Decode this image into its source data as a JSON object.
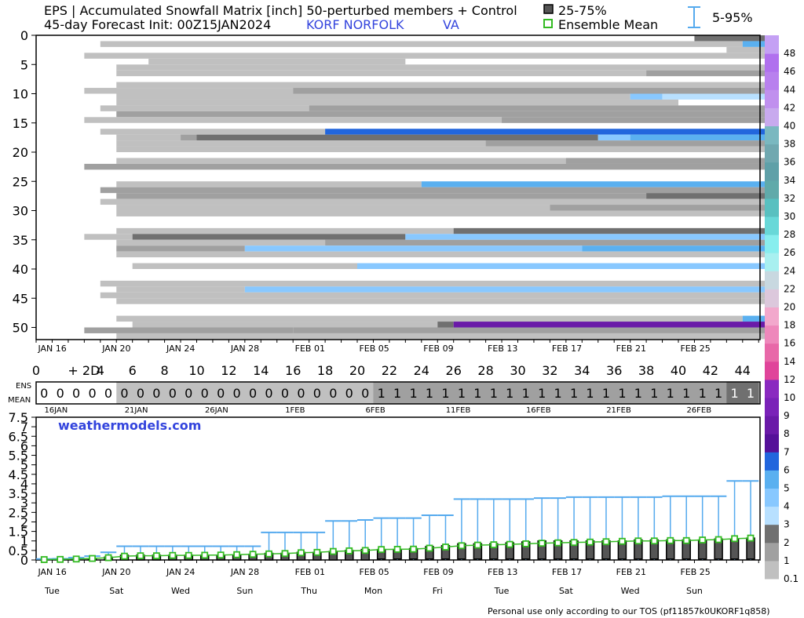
{
  "header": {
    "title_line1": "EPS | Accumulated Snowfall Matrix [inch]  50-perturbed members + Control",
    "title_line2": "45-day Forecast Init: 00Z15JAN2024",
    "station": "KORF  NORFOLK",
    "state": "VA",
    "legend_box": "25-75%",
    "legend_mean": "Ensemble Mean",
    "legend_range": "5-95%"
  },
  "colors": {
    "station_blue": "#3344dd",
    "whisker_blue": "#55aaee",
    "mean_green": "#33bb22"
  },
  "footer": {
    "tos": "Personal use only according to our TOS (pf11857k0UKORF1q858)",
    "watermark": "weathermodels.com"
  },
  "chart_data": [
    {
      "type": "heatmap",
      "title": "Accumulated Snowfall Matrix [inch]",
      "ylabel": "member",
      "y_ticks": [
        "0",
        "5",
        "10",
        "15",
        "20",
        "25",
        "30",
        "35",
        "40",
        "45",
        "50"
      ],
      "x_ticks": [
        "JAN 16",
        "JAN 20",
        "JAN 24",
        "JAN 28",
        "FEB 01",
        "FEB 05",
        "FEB 09",
        "FEB 13",
        "FEB 17",
        "FEB 21",
        "FEB 25"
      ],
      "x_unit": "forecast day",
      "member_rows": [
        {
          "m": 0,
          "segs": [
            [
              41,
              46,
              "2"
            ]
          ]
        },
        {
          "m": 1,
          "segs": [
            [
              4,
              44,
              "0.1"
            ],
            [
              44,
              46,
              "5"
            ]
          ]
        },
        {
          "m": 2,
          "segs": [
            [
              43,
              46,
              "0.1"
            ]
          ]
        },
        {
          "m": 3,
          "segs": [
            [
              3,
              46,
              "0.1"
            ]
          ]
        },
        {
          "m": 4,
          "segs": [
            [
              7,
              23,
              "0.1"
            ]
          ]
        },
        {
          "m": 5,
          "segs": [
            [
              5,
              46,
              "0.1"
            ]
          ]
        },
        {
          "m": 6,
          "segs": [
            [
              5,
              38,
              "0.1"
            ],
            [
              38,
              46,
              "1"
            ]
          ]
        },
        {
          "m": 8,
          "segs": [
            [
              5,
              46,
              "0.1"
            ]
          ]
        },
        {
          "m": 9,
          "segs": [
            [
              3,
              16,
              "0.1"
            ],
            [
              16,
              46,
              "1"
            ]
          ]
        },
        {
          "m": 10,
          "segs": [
            [
              5,
              37,
              "0.1"
            ],
            [
              37,
              39,
              "4"
            ],
            [
              39,
              46,
              "3"
            ]
          ]
        },
        {
          "m": 11,
          "segs": [
            [
              5,
              40,
              "0.1"
            ]
          ]
        },
        {
          "m": 12,
          "segs": [
            [
              4,
              17,
              "0.1"
            ],
            [
              17,
              46,
              "1"
            ]
          ]
        },
        {
          "m": 13,
          "segs": [
            [
              5,
              46,
              "1"
            ]
          ]
        },
        {
          "m": 14,
          "segs": [
            [
              3,
              46,
              "0.1"
            ],
            [
              29,
              46,
              "1"
            ]
          ]
        },
        {
          "m": 16,
          "segs": [
            [
              4,
              18,
              "0.1"
            ],
            [
              18,
              46,
              "6"
            ]
          ]
        },
        {
          "m": 17,
          "segs": [
            [
              5,
              9,
              "0.1"
            ],
            [
              9,
              10,
              "1"
            ],
            [
              10,
              35,
              "2"
            ],
            [
              35,
              37,
              "4"
            ],
            [
              37,
              46,
              "5"
            ]
          ]
        },
        {
          "m": 18,
          "segs": [
            [
              5,
              28,
              "0.1"
            ],
            [
              28,
              46,
              "1"
            ]
          ]
        },
        {
          "m": 19,
          "segs": [
            [
              5,
              46,
              "0.1"
            ]
          ]
        },
        {
          "m": 21,
          "segs": [
            [
              5,
              46,
              "0.1"
            ],
            [
              33,
              46,
              "1"
            ]
          ]
        },
        {
          "m": 22,
          "segs": [
            [
              3,
              46,
              "1"
            ]
          ]
        },
        {
          "m": 25,
          "segs": [
            [
              5,
              24,
              "0.1"
            ],
            [
              24,
              46,
              "5"
            ]
          ]
        },
        {
          "m": 26,
          "segs": [
            [
              4,
              46,
              "1"
            ]
          ]
        },
        {
          "m": 27,
          "segs": [
            [
              5,
              38,
              "1"
            ],
            [
              38,
              46,
              "2"
            ]
          ]
        },
        {
          "m": 28,
          "segs": [
            [
              4,
              46,
              "0.1"
            ]
          ]
        },
        {
          "m": 29,
          "segs": [
            [
              5,
              32,
              "0.1"
            ],
            [
              32,
              46,
              "1"
            ]
          ]
        },
        {
          "m": 30,
          "segs": [
            [
              5,
              46,
              "0.1"
            ]
          ]
        },
        {
          "m": 33,
          "segs": [
            [
              5,
              26,
              "0.1"
            ],
            [
              26,
              46,
              "2"
            ]
          ]
        },
        {
          "m": 34,
          "segs": [
            [
              3,
              6,
              "0.1"
            ],
            [
              6,
              23,
              "2"
            ],
            [
              23,
              46,
              "4"
            ]
          ]
        },
        {
          "m": 35,
          "segs": [
            [
              5,
              18,
              "0.1"
            ],
            [
              18,
              46,
              "1"
            ]
          ]
        },
        {
          "m": 36,
          "segs": [
            [
              5,
              13,
              "1"
            ],
            [
              13,
              34,
              "4"
            ],
            [
              34,
              46,
              "5"
            ]
          ]
        },
        {
          "m": 37,
          "segs": [
            [
              5,
              46,
              "0.1"
            ]
          ]
        },
        {
          "m": 39,
          "segs": [
            [
              6,
              20,
              "0.1"
            ],
            [
              20,
              46,
              "4"
            ]
          ]
        },
        {
          "m": 42,
          "segs": [
            [
              4,
              46,
              "0.1"
            ]
          ]
        },
        {
          "m": 43,
          "segs": [
            [
              5,
              13,
              "0.1"
            ],
            [
              13,
              46,
              "4"
            ]
          ]
        },
        {
          "m": 44,
          "segs": [
            [
              4,
              46,
              "0.1"
            ]
          ]
        },
        {
          "m": 45,
          "segs": [
            [
              5,
              46,
              "0.1"
            ]
          ]
        },
        {
          "m": 48,
          "segs": [
            [
              5,
              44,
              "0.1"
            ],
            [
              44,
              46,
              "5"
            ]
          ]
        },
        {
          "m": 49,
          "segs": [
            [
              6,
              25,
              "0.1"
            ],
            [
              25,
              26,
              "2"
            ],
            [
              26,
              46,
              "8"
            ]
          ]
        },
        {
          "m": 50,
          "segs": [
            [
              3,
              16,
              "1"
            ],
            [
              16,
              46,
              "1"
            ]
          ]
        },
        {
          "m": 51,
          "segs": [
            [
              5,
              46,
              "0.1"
            ]
          ]
        }
      ],
      "colorbar": {
        "levels": [
          "0.1",
          "1",
          "2",
          "3",
          "4",
          "5",
          "6",
          "7",
          "8",
          "9",
          "10",
          "12",
          "14",
          "16",
          "18",
          "20",
          "22",
          "24",
          "26",
          "28",
          "30",
          "32",
          "34",
          "36",
          "38",
          "40",
          "42",
          "44",
          "46",
          "48"
        ],
        "colors": [
          "#c0c0c0",
          "#a0a0a0",
          "#707070",
          "#b8e0ff",
          "#88c8ff",
          "#5ab0f0",
          "#2266dd",
          "#551199",
          "#6a1aa8",
          "#7a22b8",
          "#8a2ac0",
          "#e0449a",
          "#e868a8",
          "#ee88bb",
          "#f2a8cc",
          "#dcc8dc",
          "#c8d8e0",
          "#a8f0f0",
          "#88eeee",
          "#68d8d8",
          "#58c0c0",
          "#60aaaa",
          "#5fa0a8",
          "#70a8b0",
          "#7ab8c0",
          "#c8aaee",
          "#c090ee",
          "#b880ee",
          "#b070ee",
          "#c4a0f4"
        ]
      }
    },
    {
      "type": "table",
      "title": "ENS MEAN",
      "day_ticks": [
        "0",
        "+ 2D",
        "4",
        "6",
        "8",
        "10",
        "12",
        "14",
        "16",
        "18",
        "20",
        "22",
        "24",
        "26",
        "28",
        "30",
        "32",
        "34",
        "36",
        "38",
        "40",
        "42",
        "44"
      ],
      "date_ticks": [
        "16JAN",
        "21JAN",
        "26JAN",
        "1FEB",
        "6FEB",
        "11FEB",
        "16FEB",
        "21FEB",
        "26FEB"
      ],
      "row_label_top": "ENS",
      "row_label_bottom": "MEAN",
      "values": [
        "0",
        "0",
        "0",
        "0",
        "0",
        "0",
        "0",
        "0",
        "0",
        "0",
        "0",
        "0",
        "0",
        "0",
        "0",
        "0",
        "0",
        "0",
        "0",
        "0",
        "0",
        "1",
        "1",
        "1",
        "1",
        "1",
        "1",
        "1",
        "1",
        "1",
        "1",
        "1",
        "1",
        "1",
        "1",
        "1",
        "1",
        "1",
        "1",
        "1",
        "1",
        "1",
        "1",
        "1",
        "1"
      ]
    },
    {
      "type": "bar",
      "title": "Accumulated snowfall box plot",
      "ylabel": "inch",
      "ylim": [
        0,
        7.5
      ],
      "y_ticks": [
        "0",
        "0.5",
        "1",
        "1.5",
        "2",
        "2.5",
        "3",
        "3.5",
        "4",
        "4.5",
        "5",
        "5.5",
        "6",
        "6.5",
        "7",
        "7.5"
      ],
      "x_ticks": [
        "JAN 16",
        "JAN 20",
        "JAN 24",
        "JAN 28",
        "FEB 01",
        "FEB 05",
        "FEB 09",
        "FEB 13",
        "FEB 17",
        "FEB 21",
        "FEB 25"
      ],
      "weekday_ticks": [
        "Tue",
        "Sat",
        "Wed",
        "Sun",
        "Thu",
        "Mon",
        "Fri",
        "Tue",
        "Sat",
        "Wed",
        "Sun"
      ],
      "day_index": [
        0,
        1,
        2,
        3,
        4,
        5,
        6,
        7,
        8,
        9,
        10,
        11,
        12,
        13,
        14,
        15,
        16,
        17,
        18,
        19,
        20,
        21,
        22,
        23,
        24,
        25,
        26,
        27,
        28,
        29,
        30,
        31,
        32,
        33,
        34,
        35,
        36,
        37,
        38,
        39,
        40,
        41,
        42,
        43,
        44
      ],
      "p95": [
        0.05,
        0.06,
        0.12,
        0.2,
        0.4,
        0.72,
        0.72,
        0.72,
        0.72,
        0.72,
        0.72,
        0.72,
        0.72,
        0.72,
        1.45,
        1.45,
        1.45,
        1.45,
        2.05,
        2.05,
        2.1,
        2.2,
        2.2,
        2.2,
        2.35,
        2.35,
        3.2,
        3.2,
        3.2,
        3.2,
        3.2,
        3.25,
        3.25,
        3.3,
        3.3,
        3.3,
        3.3,
        3.3,
        3.3,
        3.35,
        3.35,
        3.35,
        3.35,
        4.15,
        4.15
      ],
      "p75": [
        0,
        0,
        0,
        0.05,
        0.15,
        0.25,
        0.25,
        0.25,
        0.25,
        0.25,
        0.25,
        0.25,
        0.27,
        0.3,
        0.35,
        0.35,
        0.4,
        0.4,
        0.45,
        0.5,
        0.55,
        0.55,
        0.55,
        0.6,
        0.7,
        0.75,
        0.85,
        0.85,
        0.85,
        0.9,
        0.95,
        1.0,
        1.0,
        1.0,
        1.0,
        1.0,
        1.0,
        1.05,
        1.05,
        1.05,
        1.05,
        1.05,
        1.1,
        1.1,
        1.15
      ],
      "p25": [
        0,
        0,
        0,
        0,
        0,
        0,
        0,
        0,
        0,
        0,
        0,
        0,
        0,
        0,
        0,
        0,
        0,
        0,
        0,
        0,
        0,
        0.05,
        0.05,
        0.05,
        0.05,
        0.05,
        0.05,
        0.05,
        0.05,
        0.05,
        0.05,
        0.05,
        0.05,
        0.05,
        0.05,
        0.05,
        0.05,
        0.05,
        0.05,
        0.05,
        0.05,
        0.05,
        0.05,
        0.05,
        0.05
      ],
      "mean": [
        0.02,
        0.03,
        0.05,
        0.08,
        0.12,
        0.2,
        0.22,
        0.22,
        0.24,
        0.24,
        0.25,
        0.26,
        0.28,
        0.3,
        0.32,
        0.34,
        0.38,
        0.4,
        0.45,
        0.48,
        0.5,
        0.55,
        0.56,
        0.57,
        0.62,
        0.68,
        0.75,
        0.78,
        0.8,
        0.82,
        0.85,
        0.88,
        0.9,
        0.92,
        0.94,
        0.96,
        0.98,
        1.0,
        1.0,
        1.02,
        1.02,
        1.05,
        1.07,
        1.12,
        1.15
      ]
    }
  ]
}
